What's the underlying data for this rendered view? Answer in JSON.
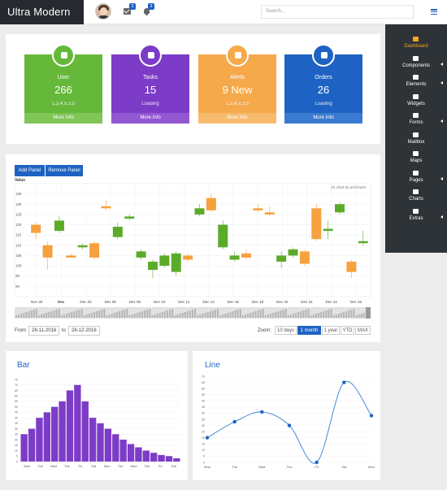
{
  "app": {
    "brand": "Ultra Modern"
  },
  "header": {
    "mail_badge": "3",
    "bell_badge": "3",
    "search_placeholder": "Search..."
  },
  "sidebar": {
    "items": [
      {
        "label": "Dashboard",
        "icon": "home-icon"
      },
      {
        "label": "Components",
        "icon": "cogs-icon"
      },
      {
        "label": "Elements",
        "icon": "cube-icon"
      },
      {
        "label": "Widgets",
        "icon": "grid-icon"
      },
      {
        "label": "Forms",
        "icon": "pencil-icon"
      },
      {
        "label": "Mailbox",
        "icon": "envelope-icon"
      },
      {
        "label": "Maps",
        "icon": "location-arrow-icon"
      },
      {
        "label": "Pages",
        "icon": "file-icon"
      },
      {
        "label": "Charts",
        "icon": "image-icon"
      },
      {
        "label": "Extras",
        "icon": "list-icon"
      }
    ]
  },
  "stats": [
    {
      "label": "User",
      "value": "266",
      "sub": "1,3,4,5,3,5",
      "footer": "More Info",
      "color": "#66b83a",
      "foot_color": "#7fc656",
      "icon": "user-icon"
    },
    {
      "label": "Tasks",
      "value": "15",
      "sub": "Loading",
      "footer": "More Info",
      "color": "#7d3cc7",
      "foot_color": "#9258d2",
      "icon": "list-icon"
    },
    {
      "label": "Alerts",
      "value": "9 New",
      "sub": "1,3,4,5,3,5",
      "footer": "More Info",
      "color": "#f5a94a",
      "foot_color": "#f7bb6d",
      "icon": "bell-icon"
    },
    {
      "label": "Orders",
      "value": "26",
      "sub": "Loading",
      "footer": "More Info",
      "color": "#1e63c3",
      "foot_color": "#3b7ad1",
      "icon": "cart-icon"
    }
  ],
  "stock": {
    "add_panel": "Add Panel",
    "remove_panel": "Remove Panel",
    "value_label": "Value",
    "credit": "JS chart by amCharts",
    "from_label": "From",
    "from_date": "28-11-2016",
    "to_label": "to",
    "to_date": "28-12-2016",
    "zoom_label": "Zoom:",
    "zoom_options": [
      "10 days",
      "1 month",
      "1 year",
      "YTD",
      "MAX"
    ],
    "zoom_selected": "1 month"
  },
  "chart_data": [
    {
      "type": "candlestick",
      "ylabel": "Value",
      "ylim": [
        85,
        140
      ],
      "yticks": [
        90,
        95,
        100,
        105,
        110,
        115,
        120,
        125,
        130,
        135
      ],
      "xticks": [
        "Nov 30",
        "Dec",
        "Dec 04",
        "Dec 06",
        "Dec 08",
        "Dec 10",
        "Dec 12",
        "Dec 14",
        "Dec 16",
        "Dec 18",
        "Dec 20",
        "Dec 22",
        "Dec 24",
        "Dec 26"
      ],
      "candles": [
        {
          "o": 120,
          "c": 116,
          "h": 121,
          "l": 113
        },
        {
          "o": 110,
          "c": 104,
          "h": 112,
          "l": 98
        },
        {
          "o": 117,
          "c": 122,
          "h": 124,
          "l": 116
        },
        {
          "o": 105,
          "c": 104,
          "h": 106,
          "l": 104
        },
        {
          "o": 109,
          "c": 110,
          "h": 111,
          "l": 108
        },
        {
          "o": 111,
          "c": 104,
          "h": 112,
          "l": 103
        },
        {
          "o": 129,
          "c": 128,
          "h": 132,
          "l": 127
        },
        {
          "o": 114,
          "c": 119,
          "h": 121,
          "l": 113
        },
        {
          "o": 123,
          "c": 124,
          "h": 125,
          "l": 122
        },
        {
          "o": 104,
          "c": 107,
          "h": 108,
          "l": 103
        },
        {
          "o": 98,
          "c": 102,
          "h": 103,
          "l": 94
        },
        {
          "o": 100,
          "c": 105,
          "h": 106,
          "l": 99
        },
        {
          "o": 97,
          "c": 106,
          "h": 107,
          "l": 95
        },
        {
          "o": 105,
          "c": 103,
          "h": 106,
          "l": 102
        },
        {
          "o": 125,
          "c": 128,
          "h": 130,
          "l": 124
        },
        {
          "o": 133,
          "c": 127,
          "h": 135,
          "l": 126
        },
        {
          "o": 109,
          "c": 120,
          "h": 122,
          "l": 108
        },
        {
          "o": 103,
          "c": 105,
          "h": 107,
          "l": 102
        },
        {
          "o": 106,
          "c": 104,
          "h": 108,
          "l": 103
        },
        {
          "o": 128,
          "c": 127,
          "h": 130,
          "l": 126
        },
        {
          "o": 126,
          "c": 125,
          "h": 129,
          "l": 124
        },
        {
          "o": 102,
          "c": 105,
          "h": 107,
          "l": 99
        },
        {
          "o": 105,
          "c": 108,
          "h": 109,
          "l": 104
        },
        {
          "o": 107,
          "c": 101,
          "h": 108,
          "l": 100
        },
        {
          "o": 128,
          "c": 113,
          "h": 130,
          "l": 112
        },
        {
          "o": 117,
          "c": 118,
          "h": 122,
          "l": 113
        },
        {
          "o": 126,
          "c": 130,
          "h": 131,
          "l": 125
        },
        {
          "o": 102,
          "c": 97,
          "h": 103,
          "l": 94
        },
        {
          "o": 111,
          "c": 112,
          "h": 117,
          "l": 110
        }
      ]
    },
    {
      "type": "bar",
      "title": "Bar",
      "categories": [
        "Mon",
        "Tue",
        "Wed",
        "Thu",
        "Fri",
        "Sat",
        "Mon",
        "Tue",
        "Wed",
        "Thu",
        "Fri",
        "Sat",
        "Mon",
        "Tue",
        "Wed",
        "Thu",
        "Fri",
        "Sat",
        "Mon",
        "Tue",
        "Wed"
      ],
      "tick_labels": [
        "Mon",
        "Tue",
        "Wed",
        "Thu",
        "Fri",
        "Sat",
        "Mon",
        "Tue",
        "Wed",
        "Thu",
        "Fri",
        "Sat"
      ],
      "values": [
        25,
        30,
        40,
        45,
        50,
        55,
        65,
        70,
        55,
        40,
        35,
        30,
        25,
        20,
        16,
        13,
        10,
        8,
        6,
        5,
        3
      ],
      "ylim": [
        0,
        75
      ],
      "yticks": [
        0,
        5,
        10,
        15,
        20,
        25,
        30,
        35,
        40,
        45,
        50,
        55,
        60,
        65,
        70,
        75
      ]
    },
    {
      "type": "line",
      "title": "Line",
      "categories": [
        "Mon",
        "Tue",
        "Wed",
        "Thu",
        "Fri",
        "Sat",
        "Mon"
      ],
      "values": [
        20,
        33,
        41,
        30,
        0,
        65,
        38
      ],
      "ylim": [
        0,
        70
      ],
      "yticks": [
        0,
        5,
        10,
        15,
        20,
        25,
        30,
        35,
        40,
        45,
        50,
        55,
        60,
        65,
        70
      ]
    }
  ]
}
